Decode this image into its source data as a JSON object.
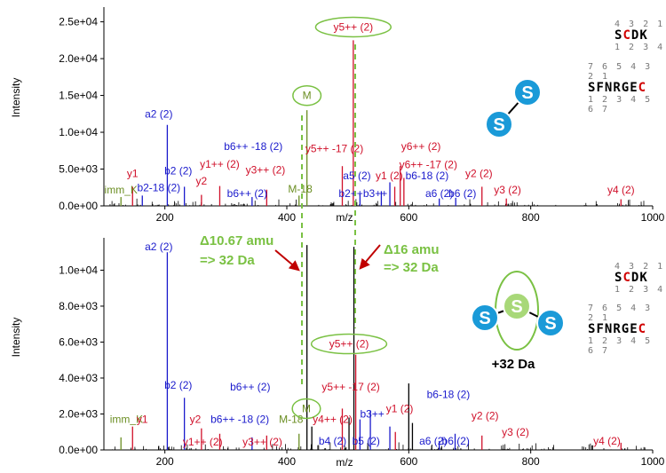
{
  "chart_data": [
    {
      "type": "bar",
      "title": "",
      "xlabel": "m/z",
      "ylabel": "Intensity",
      "xlim": [
        100,
        1000
      ],
      "ylim": [
        0,
        27000
      ],
      "x_ticks": [
        200,
        400,
        600,
        800,
        1000
      ],
      "y_ticks": [
        0,
        5000,
        10000,
        15000,
        20000,
        25000
      ],
      "y_tick_labels": [
        "0.0e+00",
        "5.0e+03",
        "1.0e+04",
        "1.5e+04",
        "2.0e+04",
        "2.5e+04"
      ],
      "peaks": [
        {
          "mz": 128,
          "intensity": 1200,
          "color": "olive"
        },
        {
          "mz": 147,
          "intensity": 2600,
          "color": "red"
        },
        {
          "mz": 163,
          "intensity": 1400,
          "color": "blue"
        },
        {
          "mz": 204,
          "intensity": 11000,
          "color": "blue"
        },
        {
          "mz": 232,
          "intensity": 2600,
          "color": "blue"
        },
        {
          "mz": 260,
          "intensity": 1500,
          "color": "red"
        },
        {
          "mz": 290,
          "intensity": 2700,
          "color": "red"
        },
        {
          "mz": 343,
          "intensity": 1200,
          "color": "blue"
        },
        {
          "mz": 367,
          "intensity": 2200,
          "color": "red"
        },
        {
          "mz": 420,
          "intensity": 1400,
          "color": "olive"
        },
        {
          "mz": 433,
          "intensity": 13000,
          "color": "olive"
        },
        {
          "mz": 509,
          "intensity": 22500,
          "color": "red"
        },
        {
          "mz": 491,
          "intensity": 5400,
          "color": "red"
        },
        {
          "mz": 520,
          "intensity": 1600,
          "color": "blue"
        },
        {
          "mz": 555,
          "intensity": 2000,
          "color": "blue"
        },
        {
          "mz": 569,
          "intensity": 3200,
          "color": "blue"
        },
        {
          "mz": 577,
          "intensity": 2600,
          "color": "red"
        },
        {
          "mz": 586,
          "intensity": 5400,
          "color": "red"
        },
        {
          "mz": 592,
          "intensity": 3800,
          "color": "red"
        },
        {
          "mz": 650,
          "intensity": 1000,
          "color": "blue"
        },
        {
          "mz": 677,
          "intensity": 1100,
          "color": "blue"
        },
        {
          "mz": 720,
          "intensity": 2600,
          "color": "red"
        },
        {
          "mz": 760,
          "intensity": 1000,
          "color": "red"
        },
        {
          "mz": 948,
          "intensity": 900,
          "color": "red"
        }
      ],
      "noise_seed": 7,
      "labels": [
        {
          "text": "y1",
          "color": "red",
          "mz": 147,
          "y": 3900
        },
        {
          "text": "imm_K",
          "color": "olive",
          "mz": 128,
          "y": 1700
        },
        {
          "text": "b2-18 (2)",
          "color": "blue",
          "mz": 190,
          "y": 2000
        },
        {
          "text": "a2 (2)",
          "color": "blue",
          "mz": 190,
          "y": 12000
        },
        {
          "text": "b2 (2)",
          "color": "blue",
          "mz": 222,
          "y": 4300
        },
        {
          "text": "y2",
          "color": "red",
          "mz": 260,
          "y": 2900
        },
        {
          "text": "y1++ (2)",
          "color": "red",
          "mz": 290,
          "y": 5200
        },
        {
          "text": "b6++ -18 (2)",
          "color": "blue",
          "mz": 345,
          "y": 7600
        },
        {
          "text": "y3++ (2)",
          "color": "red",
          "mz": 365,
          "y": 4400
        },
        {
          "text": "b6++ (2)",
          "color": "blue",
          "mz": 335,
          "y": 1200
        },
        {
          "text": "M-18",
          "color": "olive",
          "mz": 422,
          "y": 1800
        },
        {
          "text": "M",
          "color": "olive",
          "mz": 433,
          "y": 14500
        },
        {
          "text": "y5++ (2)",
          "color": "red",
          "mz": 509,
          "y": 23800
        },
        {
          "text": "y5++ -17 (2)",
          "color": "red",
          "mz": 478,
          "y": 7300
        },
        {
          "text": "a5 (2)",
          "color": "blue",
          "mz": 515,
          "y": 3600
        },
        {
          "text": "b2++",
          "color": "blue",
          "mz": 505,
          "y": 1200
        },
        {
          "text": "b3++",
          "color": "blue",
          "mz": 545,
          "y": 1200
        },
        {
          "text": "y1 (2)",
          "color": "red",
          "mz": 568,
          "y": 3600
        },
        {
          "text": "y6++ (2)",
          "color": "red",
          "mz": 620,
          "y": 7600
        },
        {
          "text": "y6++ -17 (2)",
          "color": "red",
          "mz": 632,
          "y": 5100
        },
        {
          "text": "b6-18 (2)",
          "color": "blue",
          "mz": 630,
          "y": 3600
        },
        {
          "text": "a6 (2)",
          "color": "blue",
          "mz": 650,
          "y": 1200
        },
        {
          "text": "b6 (2)",
          "color": "blue",
          "mz": 688,
          "y": 1200
        },
        {
          "text": "y2 (2)",
          "color": "red",
          "mz": 715,
          "y": 3900
        },
        {
          "text": "y3 (2)",
          "color": "red",
          "mz": 762,
          "y": 1700
        },
        {
          "text": "y4 (2)",
          "color": "red",
          "mz": 948,
          "y": 1700
        }
      ],
      "circled": [
        "M",
        "y5++ (2)"
      ],
      "sequences": [
        {
          "top": "4 3 2 1",
          "seq": "SCDK",
          "red_index": 1,
          "bottom": "1 2 3 4"
        },
        {
          "top": "7 6 5 4 3 2 1",
          "seq": "SFNRGEC",
          "red_index": 6,
          "bottom": "1 2 3 4 5 6 7"
        }
      ]
    },
    {
      "type": "bar",
      "title": "",
      "xlabel": "m/z",
      "ylabel": "Intensity",
      "xlim": [
        100,
        1000
      ],
      "ylim": [
        0,
        11800
      ],
      "x_ticks": [
        200,
        400,
        600,
        800,
        1000
      ],
      "y_ticks": [
        0,
        2000,
        4000,
        6000,
        8000,
        10000
      ],
      "y_tick_labels": [
        "0.0e+00",
        "2.0e+03",
        "4.0e+03",
        "6.0e+03",
        "8.0e+03",
        "1.0e+04"
      ],
      "peaks": [
        {
          "mz": 128,
          "intensity": 700,
          "color": "olive"
        },
        {
          "mz": 147,
          "intensity": 1300,
          "color": "red"
        },
        {
          "mz": 204,
          "intensity": 11000,
          "color": "blue"
        },
        {
          "mz": 232,
          "intensity": 2900,
          "color": "blue"
        },
        {
          "mz": 260,
          "intensity": 1200,
          "color": "red"
        },
        {
          "mz": 290,
          "intensity": 900,
          "color": "red"
        },
        {
          "mz": 343,
          "intensity": 700,
          "color": "blue"
        },
        {
          "mz": 367,
          "intensity": 800,
          "color": "red"
        },
        {
          "mz": 420,
          "intensity": 900,
          "color": "olive"
        },
        {
          "mz": 433,
          "intensity": 11400,
          "color": "black"
        },
        {
          "mz": 441,
          "intensity": 1300,
          "color": "black"
        },
        {
          "mz": 491,
          "intensity": 2300,
          "color": "red"
        },
        {
          "mz": 502,
          "intensity": 1800,
          "color": "black"
        },
        {
          "mz": 510,
          "intensity": 11300,
          "color": "black"
        },
        {
          "mz": 513,
          "intensity": 5300,
          "color": "red"
        },
        {
          "mz": 520,
          "intensity": 1700,
          "color": "blue"
        },
        {
          "mz": 537,
          "intensity": 2200,
          "color": "blue"
        },
        {
          "mz": 569,
          "intensity": 1300,
          "color": "blue"
        },
        {
          "mz": 578,
          "intensity": 1000,
          "color": "red"
        },
        {
          "mz": 600,
          "intensity": 3700,
          "color": "black"
        },
        {
          "mz": 606,
          "intensity": 1500,
          "color": "black"
        },
        {
          "mz": 650,
          "intensity": 500,
          "color": "blue"
        },
        {
          "mz": 676,
          "intensity": 900,
          "color": "blue"
        },
        {
          "mz": 720,
          "intensity": 800,
          "color": "red"
        },
        {
          "mz": 948,
          "intensity": 400,
          "color": "red"
        }
      ],
      "noise_seed": 13,
      "labels": [
        {
          "text": "a2 (2)",
          "color": "blue",
          "mz": 190,
          "y": 11100
        },
        {
          "text": "b2 (2)",
          "color": "blue",
          "mz": 222,
          "y": 3400
        },
        {
          "text": "imm_K",
          "color": "olive",
          "mz": 137,
          "y": 1500
        },
        {
          "text": "y1",
          "color": "red",
          "mz": 163,
          "y": 1500
        },
        {
          "text": "y2",
          "color": "red",
          "mz": 250,
          "y": 1500
        },
        {
          "text": "y1++ (2)",
          "color": "red",
          "mz": 262,
          "y": 250
        },
        {
          "text": "b6++ (2)",
          "color": "blue",
          "mz": 340,
          "y": 3300
        },
        {
          "text": "b6++ -18 (2)",
          "color": "blue",
          "mz": 323,
          "y": 1500
        },
        {
          "text": "y3++ (2)",
          "color": "red",
          "mz": 360,
          "y": 250
        },
        {
          "text": "M-18",
          "color": "olive",
          "mz": 407,
          "y": 1500
        },
        {
          "text": "M",
          "color": "olive",
          "mz": 432,
          "y": 2100
        },
        {
          "text": "y5++ -17 (2)",
          "color": "red",
          "mz": 505,
          "y": 3300
        },
        {
          "text": "y4++ (2)",
          "color": "red",
          "mz": 475,
          "y": 1500
        },
        {
          "text": "y5++ (2)",
          "color": "red",
          "mz": 502,
          "y": 5700
        },
        {
          "text": "b3++",
          "color": "blue",
          "mz": 540,
          "y": 1800
        },
        {
          "text": "b4 (2)",
          "color": "blue",
          "mz": 475,
          "y": 300
        },
        {
          "text": "b5 (2)",
          "color": "blue",
          "mz": 530,
          "y": 300
        },
        {
          "text": "y1 (2)",
          "color": "red",
          "mz": 585,
          "y": 2100
        },
        {
          "text": "b6-18 (2)",
          "color": "blue",
          "mz": 665,
          "y": 2900
        },
        {
          "text": "y2 (2)",
          "color": "red",
          "mz": 725,
          "y": 1700
        },
        {
          "text": "a6 (2)",
          "color": "blue",
          "mz": 640,
          "y": 300
        },
        {
          "text": "b6 (2)",
          "color": "blue",
          "mz": 677,
          "y": 300
        },
        {
          "text": "y3 (2)",
          "color": "red",
          "mz": 775,
          "y": 800
        },
        {
          "text": "y4 (2)",
          "color": "red",
          "mz": 925,
          "y": 300
        }
      ],
      "circled": [
        "M",
        "y5++ (2)"
      ],
      "sequences": [
        {
          "top": "4 3 2 1",
          "seq": "SCDK",
          "red_index": 1,
          "bottom": "1 2 3 4"
        },
        {
          "top": "7 6 5 4 3 2 1",
          "seq": "SFNRGEC",
          "red_index": 6,
          "bottom": "1 2 3 4 5 6 7"
        }
      ]
    }
  ],
  "annotations": {
    "delta1": "Δ10.67 amu",
    "delta1_sub": "=> 32 Da",
    "delta2": "Δ16 amu",
    "delta2_sub": "=> 32 Da",
    "plus32": "+32 Da"
  },
  "molecule": {
    "atom_label": "S"
  },
  "colors": {
    "red": "#d0102a",
    "blue": "#1a1acc",
    "olive": "#6b8e23",
    "black": "#000000",
    "green": "#7ac143",
    "atom": "#1a9ad8"
  }
}
